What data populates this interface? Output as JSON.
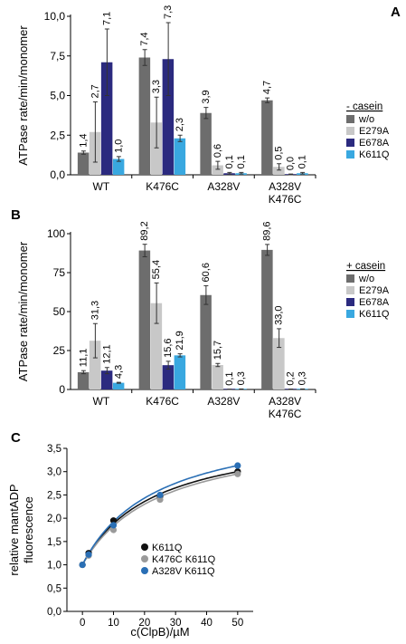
{
  "colors": {
    "w_o": "#6d6d6d",
    "E279A": "#c8c8c8",
    "E678A": "#2b2a7f",
    "K611Q": "#39a8e0",
    "k611q_fit": "#111111",
    "k476c_fit": "#9a9a9a",
    "a328v_fit": "#2a6fb5"
  },
  "chart_data": [
    {
      "panel": "A",
      "type": "bar",
      "ylabel": "ATPase rate/min/monomer",
      "ylim": [
        0,
        10
      ],
      "yticks": [
        "0,0",
        "2,5",
        "5,0",
        "7,5",
        "10,0"
      ],
      "categories": [
        [
          "WT"
        ],
        [
          "K476C"
        ],
        [
          "A328V"
        ],
        [
          "A328V",
          "K476C"
        ]
      ],
      "legend_title": "- casein",
      "legend_position": "right",
      "series": [
        {
          "name": "w/o",
          "color_key": "w_o",
          "values": [
            1.4,
            7.4,
            3.9,
            4.7
          ],
          "errors": [
            0.1,
            0.5,
            0.35,
            0.15
          ],
          "labels": [
            "1,4",
            "7,4",
            "3,9",
            "4,7"
          ]
        },
        {
          "name": "E279A",
          "color_key": "E279A",
          "values": [
            2.7,
            3.3,
            0.6,
            0.5
          ],
          "errors": [
            1.9,
            1.6,
            0.25,
            0.2
          ],
          "labels": [
            "2,7",
            "3,3",
            "0,6",
            "0,5"
          ]
        },
        {
          "name": "E678A",
          "color_key": "E678A",
          "values": [
            7.1,
            7.3,
            0.1,
            0.0
          ],
          "errors": [
            2.1,
            2.3,
            0.05,
            0.05
          ],
          "labels": [
            "7,1",
            "7,3",
            "0,1",
            "0,0"
          ]
        },
        {
          "name": "K611Q",
          "color_key": "K611Q",
          "values": [
            1.0,
            2.3,
            0.1,
            0.1
          ],
          "errors": [
            0.15,
            0.2,
            0.05,
            0.05
          ],
          "labels": [
            "1,0",
            "2,3",
            "0,1",
            "0,1"
          ]
        }
      ]
    },
    {
      "panel": "B",
      "type": "bar",
      "ylabel": "ATPase rate/min/monomer",
      "ylim": [
        0,
        100
      ],
      "yticks": [
        "0",
        "25",
        "50",
        "75",
        "100"
      ],
      "categories": [
        [
          "WT"
        ],
        [
          "K476C"
        ],
        [
          "A328V"
        ],
        [
          "A328V",
          "K476C"
        ]
      ],
      "legend_title": "+ casein",
      "legend_position": "right",
      "series": [
        {
          "name": "w/o",
          "color_key": "w_o",
          "values": [
            11.1,
            89.2,
            60.6,
            89.6
          ],
          "errors": [
            1.0,
            4.0,
            6.0,
            3.5
          ],
          "labels": [
            "11,1",
            "89,2",
            "60,6",
            "89,6"
          ]
        },
        {
          "name": "E279A",
          "color_key": "E279A",
          "values": [
            31.3,
            55.4,
            15.7,
            33.0
          ],
          "errors": [
            11.0,
            13.0,
            1.0,
            6.0
          ],
          "labels": [
            "31,3",
            "55,4",
            "15,7",
            "33,0"
          ]
        },
        {
          "name": "E678A",
          "color_key": "E678A",
          "values": [
            12.1,
            15.6,
            0.1,
            0.2
          ],
          "errors": [
            2.0,
            2.5,
            0.05,
            0.05
          ],
          "labels": [
            "12,1",
            "15,6",
            "0,1",
            "0,2"
          ]
        },
        {
          "name": "K611Q",
          "color_key": "K611Q",
          "values": [
            4.3,
            21.9,
            0.3,
            0.3
          ],
          "errors": [
            0.3,
            1.0,
            0.05,
            0.05
          ],
          "labels": [
            "4,3",
            "21,9",
            "0,3",
            "0,3"
          ]
        }
      ]
    },
    {
      "panel": "C",
      "type": "scatter",
      "xlabel": "c(ClpB)/µM",
      "ylabel": [
        "relative mantADP",
        "fluorescence"
      ],
      "xlim": [
        -5,
        55
      ],
      "ylim": [
        0,
        3.5
      ],
      "xticks": [
        "0",
        "10",
        "20",
        "30",
        "40",
        "50"
      ],
      "yticks": [
        "0,0",
        "0,5",
        "1,0",
        "1,5",
        "2,0",
        "2,5",
        "3,0",
        "3,5"
      ],
      "legend_position": "lower-right",
      "series": [
        {
          "name": "K611Q",
          "color_key": "k611q_fit",
          "x": [
            0,
            2,
            10,
            25,
            50
          ],
          "y": [
            1.0,
            1.25,
            1.95,
            2.47,
            3.0
          ],
          "fit_max": 3.2,
          "fit_k": 23
        },
        {
          "name": "K476C K611Q",
          "color_key": "k476c_fit",
          "x": [
            0,
            2,
            10,
            25,
            50
          ],
          "y": [
            1.0,
            1.2,
            1.75,
            2.4,
            2.95
          ],
          "fit_max": 3.2,
          "fit_k": 25
        },
        {
          "name": "A328V K611Q",
          "color_key": "a328v_fit",
          "x": [
            0,
            2,
            10,
            25,
            50
          ],
          "y": [
            1.0,
            1.22,
            1.85,
            2.5,
            3.13
          ],
          "fit_max": 3.45,
          "fit_k": 24
        }
      ]
    }
  ]
}
